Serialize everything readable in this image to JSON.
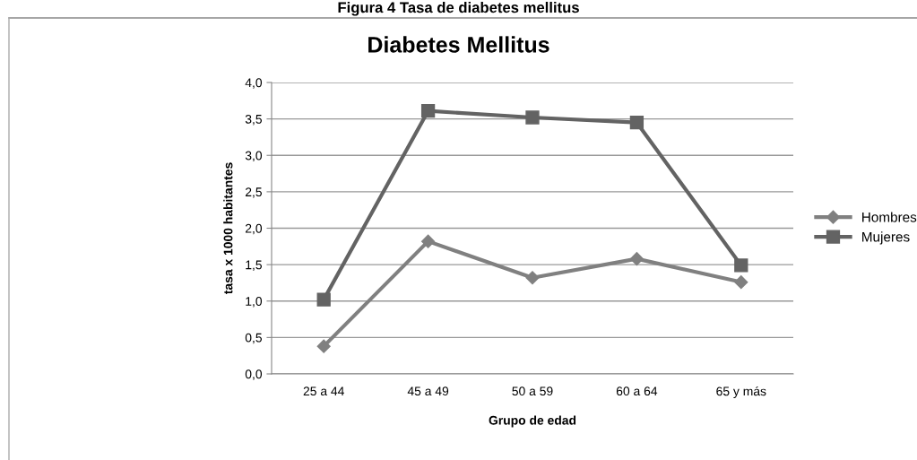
{
  "chart_data": {
    "type": "line",
    "title": "Figura 4 Tasa de diabetes mellitus",
    "subtitle": "Diabetes Mellitus",
    "xlabel": "Grupo de edad",
    "ylabel": "tasa x 1000 habitantes",
    "categories": [
      "25 a 44",
      "45 a 49",
      "50 a 59",
      "60 a 64",
      "65 y más"
    ],
    "series": [
      {
        "name": "Hombres",
        "color": "#808080",
        "marker": "diamond",
        "values": [
          0.38,
          1.82,
          1.32,
          1.58,
          1.26
        ]
      },
      {
        "name": "Mujeres",
        "color": "#636363",
        "marker": "square",
        "values": [
          1.02,
          3.61,
          3.52,
          3.45,
          1.49
        ]
      }
    ],
    "ylim": [
      0,
      4
    ],
    "yticks": [
      {
        "value": 0,
        "label": "0,0"
      },
      {
        "value": 0.5,
        "label": "0,5"
      },
      {
        "value": 1,
        "label": "1,0"
      },
      {
        "value": 1.5,
        "label": "1,5"
      },
      {
        "value": 2,
        "label": "2,0"
      },
      {
        "value": 2.5,
        "label": "2,5"
      },
      {
        "value": 3,
        "label": "3,0"
      },
      {
        "value": 3.5,
        "label": "3,5"
      },
      {
        "value": 4,
        "label": "4,0"
      }
    ],
    "grid": "y",
    "legend": "right",
    "line_style": "solid"
  }
}
